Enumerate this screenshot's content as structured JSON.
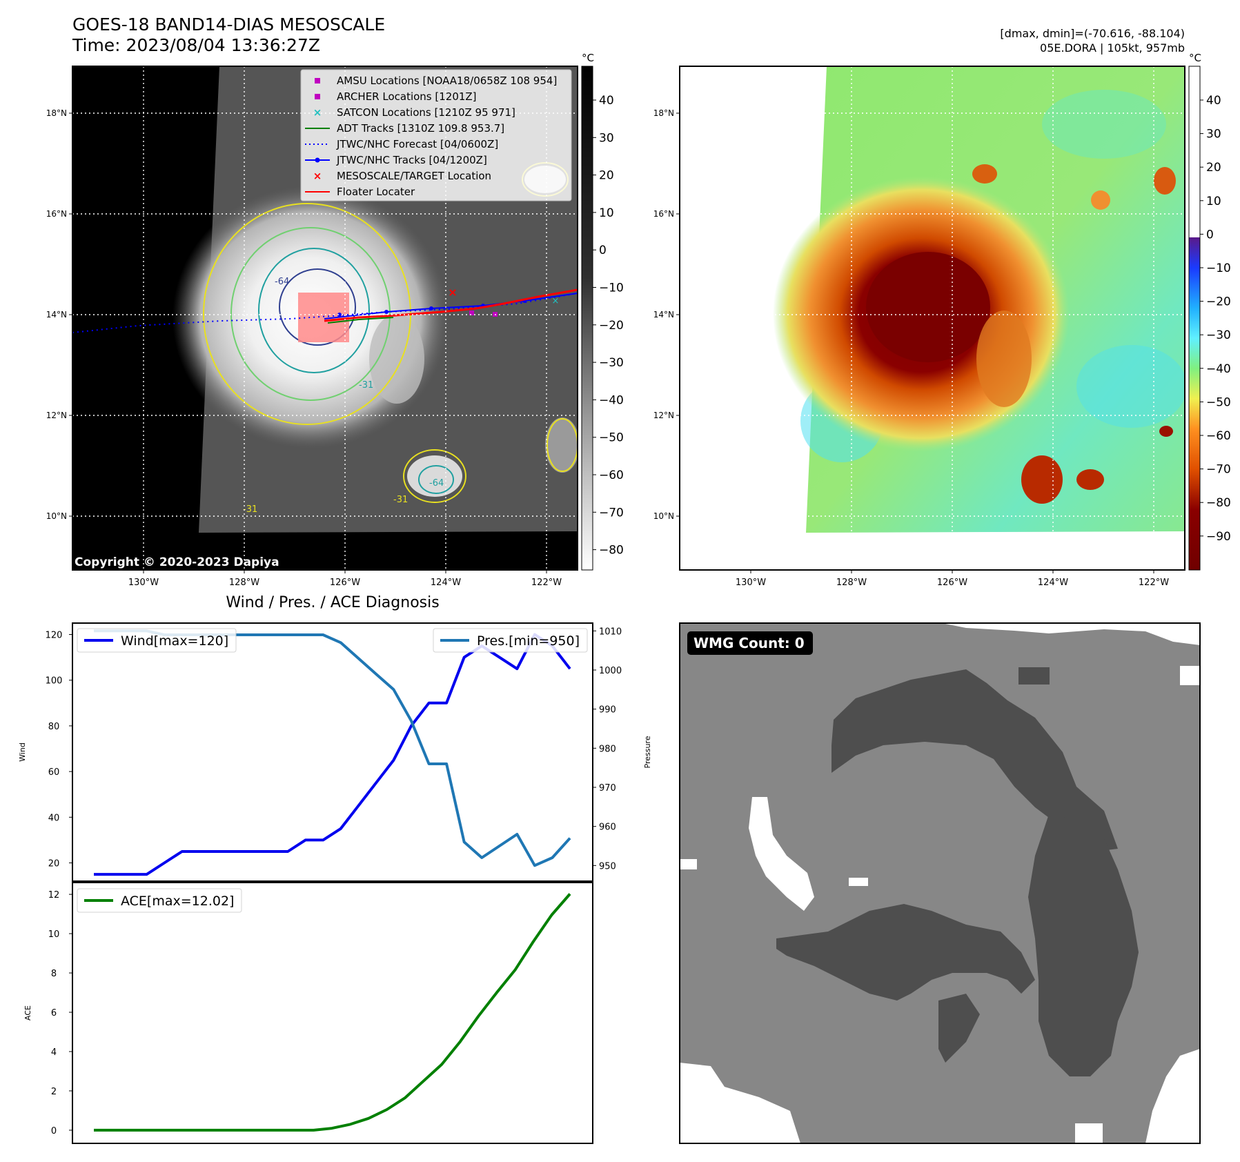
{
  "header": {
    "title": "GOES-18 BAND14-DIAS MESOSCALE",
    "time": "Time: 2023/08/04 13:36:27Z",
    "dmax_dmin": "[dmax, dmin]=(-70.616, -88.104)",
    "storm": "05E.DORA | 105kt, 957mb"
  },
  "maps": {
    "unit": "°C",
    "lat_labels": [
      "18°N",
      "16°N",
      "14°N",
      "12°N",
      "10°N"
    ],
    "lon_labels": [
      "130°W",
      "128°W",
      "126°W",
      "124°W",
      "122°W"
    ],
    "gray_colorbar_ticks": [
      "40",
      "30",
      "20",
      "10",
      "0",
      "−10",
      "−20",
      "−30",
      "−40",
      "−50",
      "−60",
      "−70",
      "−80"
    ],
    "color_colorbar_ticks": [
      "40",
      "30",
      "20",
      "10",
      "0",
      "−10",
      "−20",
      "−30",
      "−40",
      "−50",
      "−60",
      "−70",
      "−80",
      "−90"
    ],
    "copyright": "Copyright © 2020-2023 Dapiya",
    "contour_labels": [
      "-64",
      "-31",
      "-31",
      "-64",
      "-31"
    ],
    "legend": [
      {
        "label": "AMSU Locations [NOAA18/0658Z 108 954]",
        "color": "#c000c0",
        "marker": "square"
      },
      {
        "label": "ARCHER Locations [1201Z]",
        "color": "#c000c0",
        "marker": "square"
      },
      {
        "label": "SATCON Locations [1210Z 95 971]",
        "color": "#20c0c0",
        "marker": "x"
      },
      {
        "label": "ADT Tracks [1310Z 109.8 953.7]",
        "color": "#008000",
        "marker": "line"
      },
      {
        "label": "JTWC/NHC Forecast [04/0600Z]",
        "color": "#0000ff",
        "marker": "dotted"
      },
      {
        "label": "JTWC/NHC Tracks [04/1200Z]",
        "color": "#0000ff",
        "marker": "line-dot"
      },
      {
        "label": "MESOSCALE/TARGET Location",
        "color": "#ff0000",
        "marker": "x"
      },
      {
        "label": "Floater Locater",
        "color": "#ff0000",
        "marker": "line"
      }
    ]
  },
  "chart_data": [
    {
      "type": "line",
      "title": "Wind / Pres. / ACE Diagnosis",
      "ylabel": "Wind",
      "ylabel_right": "Pressure",
      "ylim": [
        12,
        125
      ],
      "ylim_right": [
        946,
        1012
      ],
      "y_ticks": [
        20,
        40,
        60,
        80,
        100,
        120
      ],
      "y_ticks_right": [
        950,
        960,
        970,
        980,
        990,
        1000,
        1010
      ],
      "series": [
        {
          "name": "Wind[max=120]",
          "color": "#0000ee",
          "axis": "left",
          "values": [
            15,
            15,
            15,
            15,
            20,
            25,
            25,
            25,
            25,
            25,
            25,
            25,
            30,
            30,
            35,
            45,
            55,
            65,
            80,
            90,
            90,
            110,
            115,
            110,
            105,
            120,
            115,
            105
          ]
        },
        {
          "name": "Pres.[min=950]",
          "color": "#1f77b4",
          "axis": "right",
          "values": [
            1010,
            1010,
            1010,
            1010,
            1009,
            1009,
            1009,
            1009,
            1009,
            1009,
            1009,
            1009,
            1009,
            1009,
            1007,
            1003,
            999,
            995,
            987,
            976,
            976,
            956,
            952,
            955,
            958,
            950,
            952,
            957
          ]
        }
      ]
    },
    {
      "type": "line",
      "ylabel": "ACE",
      "ylim": [
        -0.6,
        12.6
      ],
      "y_ticks": [
        0,
        2,
        4,
        6,
        8,
        10,
        12
      ],
      "series": [
        {
          "name": "ACE[max=12.02]",
          "color": "#008000",
          "values": [
            0,
            0,
            0,
            0,
            0,
            0,
            0,
            0,
            0,
            0,
            0,
            0,
            0,
            0.1,
            0.3,
            0.6,
            1.05,
            1.65,
            2.5,
            3.35,
            4.5,
            5.8,
            7.0,
            8.15,
            9.6,
            10.95,
            12.02
          ]
        }
      ]
    }
  ],
  "wmg": {
    "label": "WMG Count: 0"
  }
}
